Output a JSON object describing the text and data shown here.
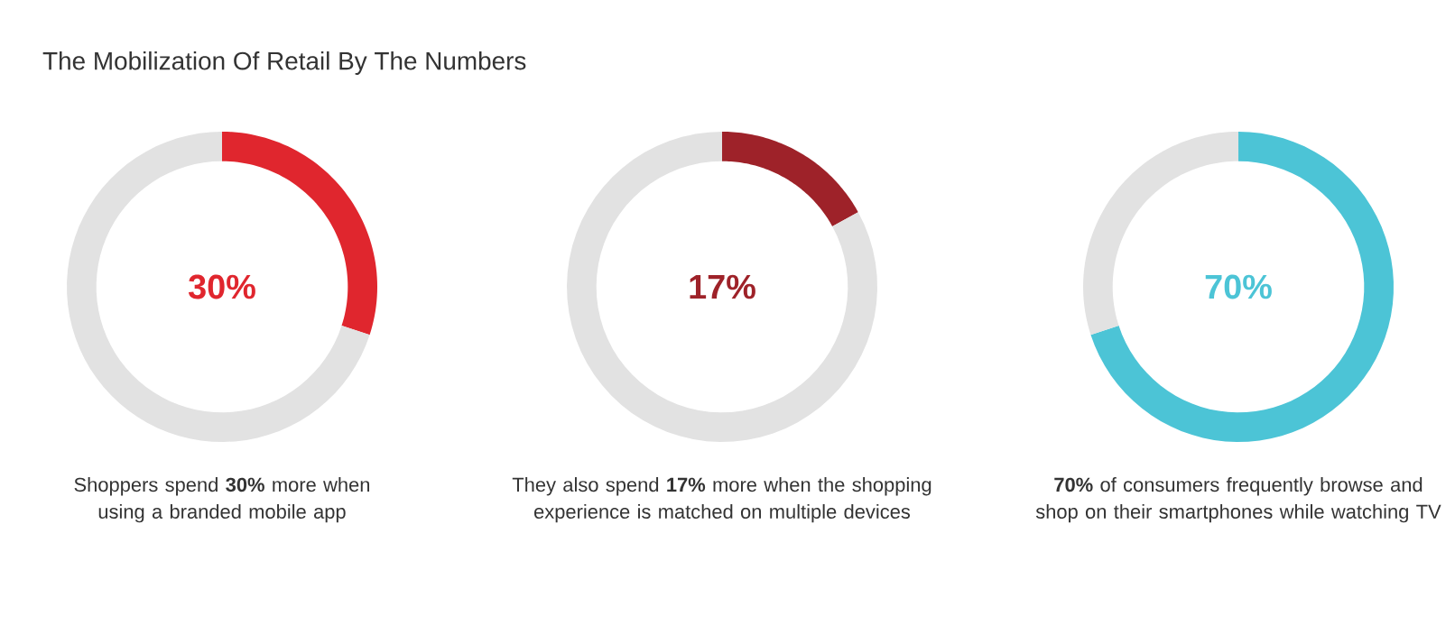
{
  "chart_data": [
    {
      "type": "donut",
      "title": "The Mobilization Of Retail By The Numbers",
      "categories": [
        null,
        null
      ],
      "values": [
        30,
        70
      ],
      "colors": [
        "#e0262e",
        "#e2e2e2"
      ],
      "annotations": [
        "30%",
        "Shoppers spend **30%** more when using a branded mobile app"
      ]
    },
    {
      "type": "donut",
      "categories": [
        null,
        null
      ],
      "values": [
        17,
        83
      ],
      "colors": [
        "#9e2229",
        "#e2e2e2"
      ],
      "annotations": [
        "17%",
        "They also spend **17%** more when the shopping experience is matched on multiple devices"
      ]
    },
    {
      "type": "donut",
      "categories": [
        null,
        null
      ],
      "values": [
        70,
        30
      ],
      "colors": [
        "#4cc4d6",
        "#e2e2e2"
      ],
      "annotations": [
        "70%",
        "**70%** of consumers frequently browse and shop on their smartphones while watching TV"
      ]
    }
  ]
}
